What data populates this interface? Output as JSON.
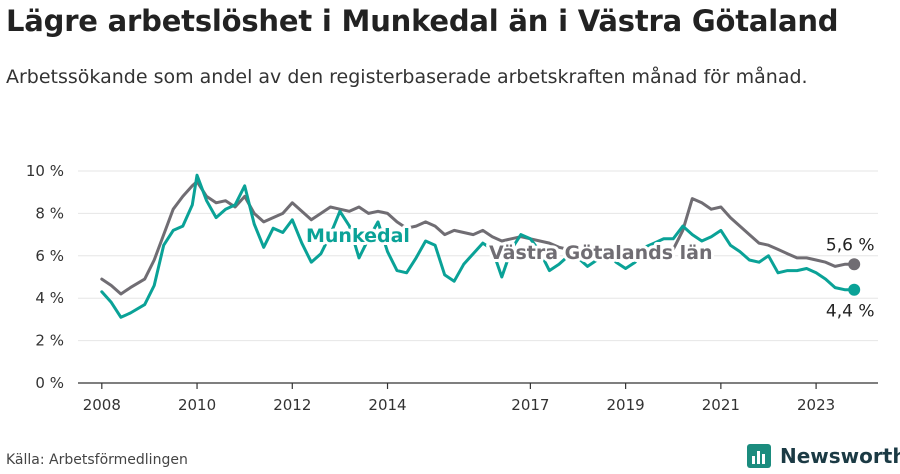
{
  "title": "Lägre arbetslöshet i Munkedal än i Västra Götaland",
  "subtitle": "Arbetssökande som andel av den registerbaserade arbetskraften månad för månad.",
  "source": "Källa: Arbetsförmedlingen",
  "brand": "Newsworthy",
  "colors": {
    "munkedal": "#0aa297",
    "vgl": "#706d73",
    "grid": "#e6e6e6",
    "axis": "#333333",
    "brand": "#1b8c7e"
  },
  "chart_data": {
    "type": "line",
    "title": "Lägre arbetslöshet i Munkedal än i Västra Götaland",
    "xlabel": "",
    "ylabel": "",
    "ylim": [
      0,
      10
    ],
    "xlim": [
      2007.5,
      2024.3
    ],
    "y_ticks": [
      "0 %",
      "2 %",
      "4 %",
      "6 %",
      "8 %",
      "10 %"
    ],
    "y_tick_values": [
      0,
      2,
      4,
      6,
      8,
      10
    ],
    "x_ticks": [
      "2008",
      "2010",
      "2012",
      "2014",
      "2017",
      "2019",
      "2021",
      "2023"
    ],
    "x_tick_values": [
      2008,
      2010,
      2012,
      2014,
      2017,
      2019,
      2021,
      2023
    ],
    "series": [
      {
        "name": "Västra Götalands län",
        "label": "Västra Götalands län",
        "end_label": "5,6 %",
        "end_value": 5.6,
        "x": [
          2008.0,
          2008.2,
          2008.4,
          2008.6,
          2008.9,
          2009.1,
          2009.3,
          2009.5,
          2009.7,
          2009.9,
          2010.0,
          2010.2,
          2010.4,
          2010.6,
          2010.8,
          2011.0,
          2011.2,
          2011.4,
          2011.6,
          2011.8,
          2012.0,
          2012.2,
          2012.4,
          2012.6,
          2012.8,
          2013.0,
          2013.2,
          2013.4,
          2013.6,
          2013.8,
          2014.0,
          2014.2,
          2014.4,
          2014.6,
          2014.8,
          2015.0,
          2015.2,
          2015.4,
          2015.6,
          2015.8,
          2016.0,
          2016.2,
          2016.4,
          2016.6,
          2016.8,
          2017.0,
          2017.2,
          2017.4,
          2017.6,
          2017.8,
          2018.0,
          2018.2,
          2018.4,
          2018.6,
          2018.8,
          2019.0,
          2019.2,
          2019.4,
          2019.6,
          2019.8,
          2020.0,
          2020.2,
          2020.4,
          2020.6,
          2020.8,
          2021.0,
          2021.2,
          2021.4,
          2021.6,
          2021.8,
          2022.0,
          2022.2,
          2022.4,
          2022.6,
          2022.8,
          2023.0,
          2023.2,
          2023.4,
          2023.6,
          2023.8
        ],
        "values": [
          4.9,
          4.6,
          4.2,
          4.5,
          4.9,
          5.8,
          7.0,
          8.2,
          8.8,
          9.3,
          9.5,
          8.8,
          8.5,
          8.6,
          8.3,
          8.8,
          8.0,
          7.6,
          7.8,
          8.0,
          8.5,
          8.1,
          7.7,
          8.0,
          8.3,
          8.2,
          8.1,
          8.3,
          8.0,
          8.1,
          8.0,
          7.6,
          7.3,
          7.4,
          7.6,
          7.4,
          7.0,
          7.2,
          7.1,
          7.0,
          7.2,
          6.9,
          6.7,
          6.8,
          6.9,
          6.8,
          6.7,
          6.6,
          6.4,
          6.3,
          6.5,
          6.2,
          6.3,
          6.1,
          6.0,
          6.1,
          6.0,
          6.2,
          6.0,
          6.1,
          6.3,
          7.2,
          8.7,
          8.5,
          8.2,
          8.3,
          7.8,
          7.4,
          7.0,
          6.6,
          6.5,
          6.3,
          6.1,
          5.9,
          5.9,
          5.8,
          5.7,
          5.5,
          5.6,
          5.6
        ]
      },
      {
        "name": "Munkedal",
        "label": "Munkedal",
        "end_label": "4,4 %",
        "end_value": 4.4,
        "x": [
          2008.0,
          2008.2,
          2008.4,
          2008.6,
          2008.9,
          2009.1,
          2009.3,
          2009.5,
          2009.7,
          2009.9,
          2010.0,
          2010.2,
          2010.4,
          2010.6,
          2010.8,
          2011.0,
          2011.2,
          2011.4,
          2011.6,
          2011.8,
          2012.0,
          2012.2,
          2012.4,
          2012.6,
          2012.8,
          2013.0,
          2013.2,
          2013.4,
          2013.6,
          2013.8,
          2014.0,
          2014.2,
          2014.4,
          2014.6,
          2014.8,
          2015.0,
          2015.2,
          2015.4,
          2015.6,
          2015.8,
          2016.0,
          2016.2,
          2016.4,
          2016.6,
          2016.8,
          2017.0,
          2017.2,
          2017.4,
          2017.6,
          2017.8,
          2018.0,
          2018.2,
          2018.4,
          2018.6,
          2018.8,
          2019.0,
          2019.2,
          2019.4,
          2019.6,
          2019.8,
          2020.0,
          2020.2,
          2020.4,
          2020.6,
          2020.8,
          2021.0,
          2021.2,
          2021.4,
          2021.6,
          2021.8,
          2022.0,
          2022.2,
          2022.4,
          2022.6,
          2022.8,
          2023.0,
          2023.2,
          2023.4,
          2023.6,
          2023.8
        ],
        "values": [
          4.3,
          3.8,
          3.1,
          3.3,
          3.7,
          4.6,
          6.5,
          7.2,
          7.4,
          8.4,
          9.8,
          8.6,
          7.8,
          8.2,
          8.4,
          9.3,
          7.5,
          6.4,
          7.3,
          7.1,
          7.7,
          6.6,
          5.7,
          6.1,
          7.0,
          8.1,
          7.4,
          5.9,
          6.8,
          7.6,
          6.2,
          5.3,
          5.2,
          5.9,
          6.7,
          6.5,
          5.1,
          4.8,
          5.6,
          6.1,
          6.6,
          6.3,
          5.0,
          6.3,
          7.0,
          6.8,
          6.2,
          5.3,
          5.6,
          6.0,
          5.9,
          5.5,
          5.8,
          6.2,
          5.7,
          5.4,
          5.7,
          6.4,
          6.6,
          6.8,
          6.8,
          7.4,
          7.0,
          6.7,
          6.9,
          7.2,
          6.5,
          6.2,
          5.8,
          5.7,
          6.0,
          5.2,
          5.3,
          5.3,
          5.4,
          5.2,
          4.9,
          4.5,
          4.4,
          4.4
        ]
      }
    ]
  }
}
